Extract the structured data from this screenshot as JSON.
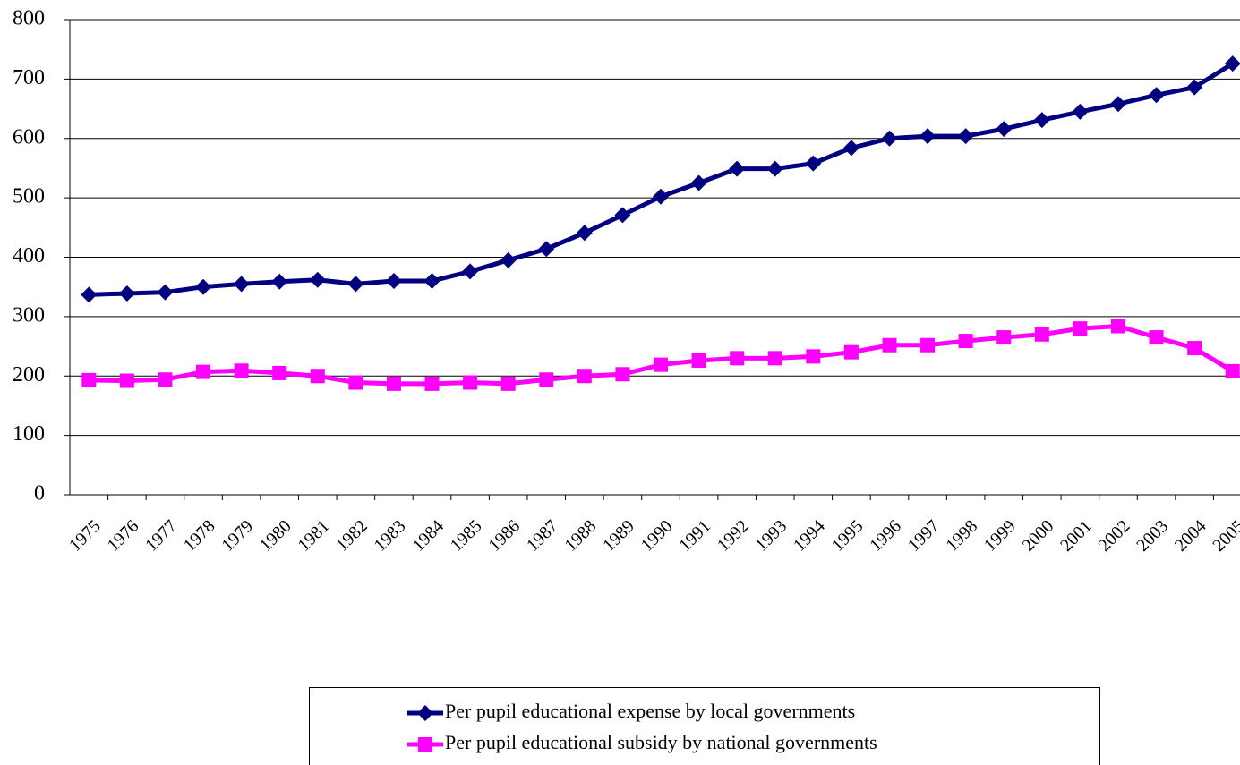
{
  "chart_data": {
    "type": "line",
    "categories": [
      "1975",
      "1976",
      "1977",
      "1978",
      "1979",
      "1980",
      "1981",
      "1982",
      "1983",
      "1984",
      "1985",
      "1986",
      "1987",
      "1988",
      "1989",
      "1990",
      "1991",
      "1992",
      "1993",
      "1994",
      "1995",
      "1996",
      "1997",
      "1998",
      "1999",
      "2000",
      "2001",
      "2002",
      "2003",
      "2004",
      "2005"
    ],
    "series": [
      {
        "name": "Per pupil educational expense by local governments",
        "color": "#000080",
        "marker": "diamond",
        "values": [
          337,
          339,
          341,
          350,
          355,
          359,
          362,
          355,
          360,
          360,
          376,
          395,
          414,
          441,
          471,
          502,
          525,
          549,
          549,
          558,
          584,
          600,
          604,
          604,
          616,
          631,
          645,
          658,
          673,
          686,
          726
        ]
      },
      {
        "name": "Per pupil educational subsidy by national governments",
        "color": "#ff00ff",
        "marker": "square",
        "values": [
          193,
          192,
          194,
          207,
          209,
          205,
          200,
          189,
          187,
          187,
          189,
          187,
          194,
          200,
          203,
          219,
          226,
          230,
          230,
          233,
          240,
          252,
          252,
          259,
          265,
          270,
          280,
          284,
          265,
          247,
          208
        ]
      }
    ],
    "ylim": [
      0,
      800
    ],
    "yticks": [
      0,
      100,
      200,
      300,
      400,
      500,
      600,
      700,
      800
    ],
    "grid": true,
    "legend": "bottom"
  }
}
